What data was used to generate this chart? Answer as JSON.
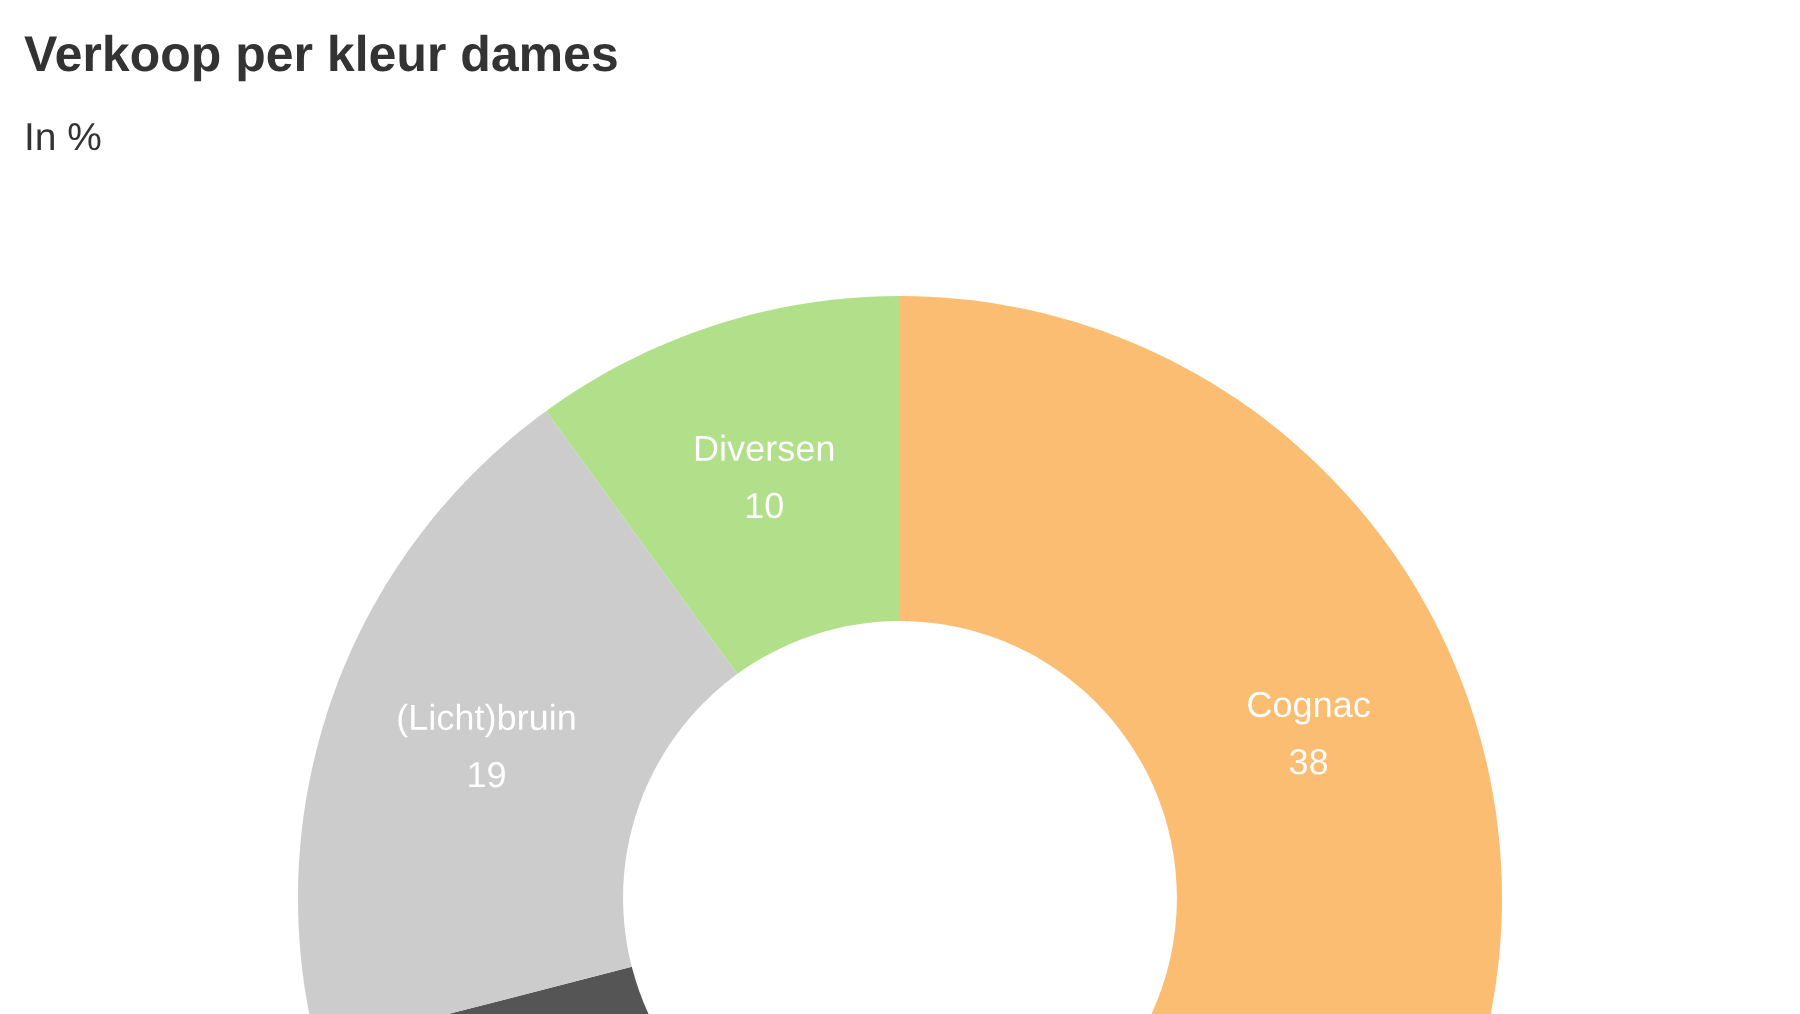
{
  "chart_data": {
    "type": "donut",
    "title": "Verkoop per kleur dames",
    "subtitle": "In %",
    "categories": [
      "Cognac",
      null,
      "(Licht)bruin",
      "Diversen"
    ],
    "values": [
      38,
      33,
      19,
      10
    ],
    "colors": [
      "#fbbd71",
      "#555555",
      "#cccccc",
      "#b2e08a"
    ],
    "value_labels": [
      "38",
      null,
      "19",
      "10"
    ]
  }
}
